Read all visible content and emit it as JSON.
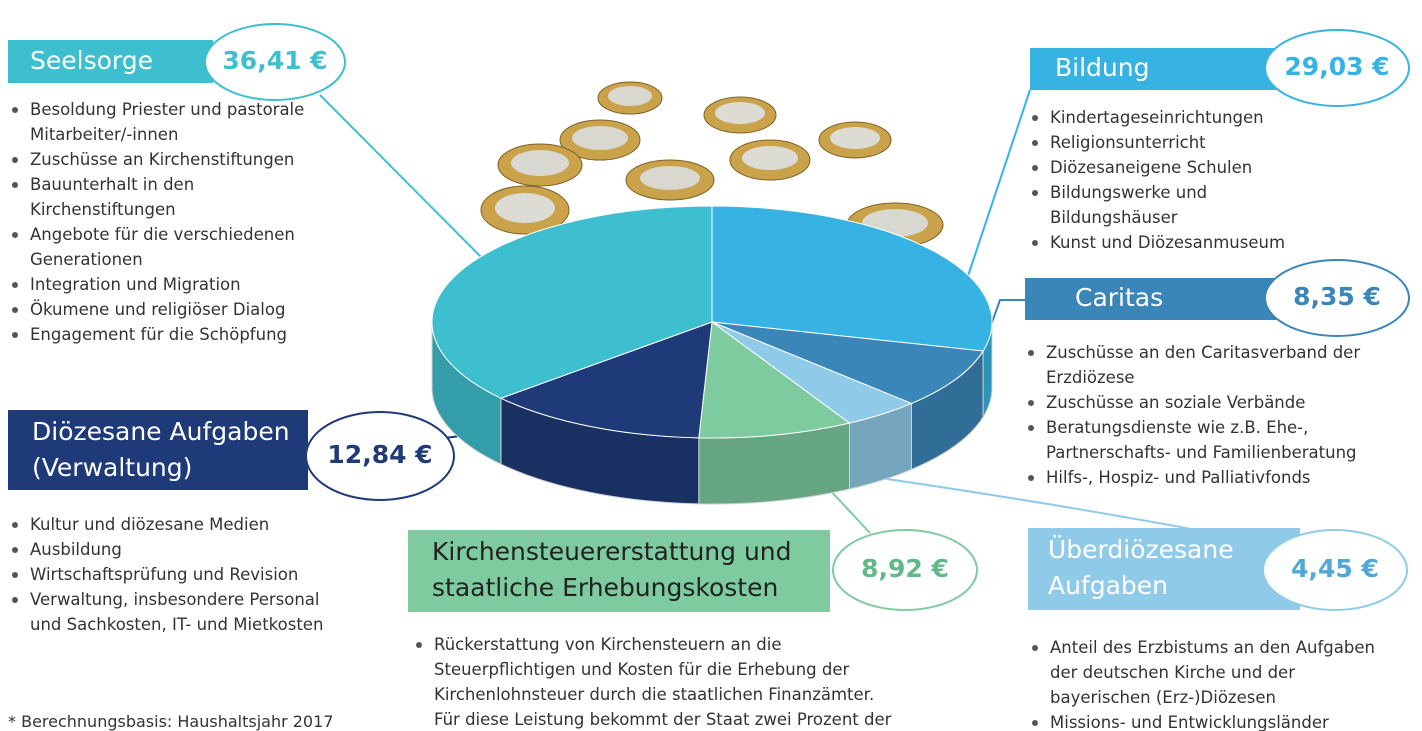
{
  "chart_data": {
    "type": "pie3d",
    "categories": [
      "Seelsorge",
      "Bildung",
      "Caritas",
      "Überdiözesane Aufgaben",
      "Kirchensteuererstattung und staatliche Erhebungskosten",
      "Diözesane Aufgaben (Verwaltung)"
    ],
    "values": [
      36.41,
      29.03,
      8.35,
      4.45,
      8.92,
      12.84
    ],
    "value_labels": [
      "36,41 €",
      "29,03 €",
      "8,35 €",
      "4,45 €",
      "8,92 €",
      "12,84 €"
    ],
    "colors": [
      "#3ebfcf",
      "#36b3e2",
      "#3b86b9",
      "#8fcbe8",
      "#7ecb9f",
      "#1f3a78"
    ],
    "pie_order": [
      1,
      2,
      3,
      4,
      5,
      0
    ],
    "details": [
      [
        "Besoldung Priester und pastorale Mitarbeiter/-innen",
        "Zuschüsse an Kirchenstiftungen",
        "Bauunterhalt in den Kirchenstiftungen",
        "Angebote für die verschiedenen Generationen",
        "Integration und Migration",
        "Ökumene und religiöser Dialog",
        "Engagement für die Schöpfung"
      ],
      [
        "Kindertageseinrichtungen",
        "Religionsunterricht",
        "Diözesaneigene Schulen",
        "Bildungswerke und Bildungshäuser",
        "Kunst und Diözesanmuseum"
      ],
      [
        "Zuschüsse an den Caritasverband der Erzdiözese",
        "Zuschüsse an soziale Verbände",
        "Beratungsdienste wie z.B. Ehe-, Partnerschafts- und Familienberatung",
        "Hilfs-, Hospiz- und Palliativfonds"
      ],
      [
        "Anteil des Erzbistums an den Aufgaben der deutschen Kirche und der bayerischen (Erz-)Diözesen",
        "Missions- und Entwicklungsländer"
      ],
      [
        "Rückerstattung von Kirchensteuern an die Steuerpflichtigen und Kosten für die Erhebung der Kirchenlohnsteuer durch die staatlichen Finanzämter. Für diese Leistung bekommt der Staat zwei Prozent der erhobenen Steuer."
      ],
      [
        "Kultur und diözesane Medien",
        "Ausbildung",
        "Wirtschaftsprüfung und Revision",
        "Verwaltung, insbesondere Personal und Sachkosten, IT- und Mietkosten"
      ]
    ],
    "footnote": "* Berechnungsbasis: Haushaltsjahr 2017"
  }
}
